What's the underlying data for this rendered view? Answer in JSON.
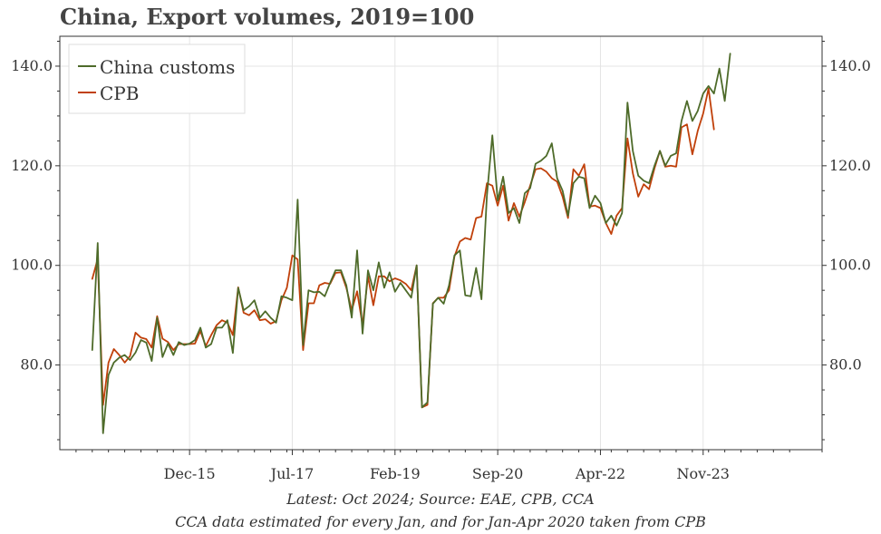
{
  "chart_data": {
    "type": "line",
    "title": "China, Export volumes, 2019=100",
    "footnote_1": "Latest: Oct 2024; Source: EAE, CPB, CCA",
    "footnote_2": "CCA data estimated for every Jan, and for Jan-Apr 2020 taken from CPB",
    "x_tick_labels": [
      "Dec-15",
      "Jul-17",
      "Feb-19",
      "Sep-20",
      "Apr-22",
      "Nov-23"
    ],
    "x_tick_dates": [
      "2015-12",
      "2017-07",
      "2019-02",
      "2020-09",
      "2022-04",
      "2023-11"
    ],
    "x_range": [
      "2013-12",
      "2025-09"
    ],
    "y_range": [
      63,
      146
    ],
    "y_ticks": [
      80.0,
      100.0,
      120.0,
      140.0
    ],
    "y_tick_labels": [
      "80.0",
      "100.0",
      "120.0",
      "140.0"
    ],
    "grid": true,
    "legend_position": "top-left",
    "colors": {
      "china_customs": "#4e6b2a",
      "cpb": "#c0400a",
      "grid": "#e4e4e4",
      "axis": "#333333"
    },
    "series": [
      {
        "name": "China customs",
        "start": "2014-06",
        "values": [
          83.0,
          104.5,
          66.3,
          78.0,
          80.5,
          81.5,
          82.0,
          81.0,
          82.5,
          85.0,
          84.5,
          80.8,
          89.5,
          81.6,
          84.3,
          82.0,
          84.6,
          84.0,
          84.3,
          85.0,
          87.5,
          83.5,
          84.2,
          87.5,
          87.5,
          89.0,
          82.4,
          95.5,
          91.0,
          91.8,
          93.0,
          89.5,
          90.8,
          89.5,
          88.5,
          93.8,
          93.5,
          93.0,
          113.2,
          84.0,
          95.0,
          94.6,
          94.7,
          93.8,
          96.5,
          99.0,
          99.0,
          96.0,
          89.5,
          103.0,
          86.3,
          99.0,
          95.0,
          100.6,
          95.5,
          98.6,
          94.7,
          96.5,
          95.0,
          93.5,
          100.0,
          71.5,
          72.5,
          92.3,
          93.5,
          92.3,
          96.0,
          102.0,
          103.0,
          94.0,
          93.8,
          99.5,
          93.2,
          114.0,
          126.1,
          113.0,
          117.8,
          110.5,
          111.5,
          108.5,
          114.5,
          115.5,
          120.4,
          121.0,
          122.0,
          124.5,
          117.5,
          115.0,
          110.0,
          116.5,
          117.8,
          117.5,
          111.5,
          114.0,
          112.5,
          108.5,
          110.0,
          108.0,
          110.5,
          132.7,
          123.0,
          118.0,
          117.0,
          116.5,
          120.0,
          123.0,
          120.0,
          122.0,
          122.5,
          129.0,
          133.0,
          129.0,
          131.0,
          134.5,
          136.0,
          134.5,
          139.5,
          133.0,
          142.5
        ]
      },
      {
        "name": "CPB",
        "start": "2014-06",
        "values": [
          97.3,
          101.3,
          72.0,
          80.5,
          83.2,
          82.0,
          80.5,
          81.8,
          86.5,
          85.5,
          85.2,
          83.5,
          89.8,
          85.3,
          84.6,
          83.0,
          84.2,
          84.2,
          84.2,
          84.3,
          86.8,
          83.8,
          86.0,
          88.0,
          89.0,
          88.5,
          86.0,
          95.6,
          90.5,
          90.0,
          91.0,
          89.0,
          89.2,
          88.3,
          88.8,
          93.0,
          95.5,
          102.0,
          101.2,
          83.0,
          92.4,
          92.4,
          96.0,
          96.5,
          96.3,
          98.5,
          98.6,
          95.5,
          91.0,
          94.8,
          88.0,
          97.8,
          92.0,
          97.8,
          97.8,
          96.8,
          97.4,
          97.0,
          96.3,
          95.0,
          100.0,
          71.5,
          72.0,
          92.4,
          93.5,
          93.5,
          95.0,
          101.8,
          104.8,
          105.5,
          105.2,
          109.5,
          109.8,
          116.5,
          116.0,
          112.0,
          116.0,
          109.0,
          112.5,
          109.8,
          112.7,
          116.0,
          119.3,
          119.5,
          118.8,
          117.5,
          116.8,
          113.8,
          109.5,
          119.3,
          118.0,
          120.3,
          111.8,
          112.0,
          111.5,
          108.5,
          106.3,
          110.0,
          111.5,
          125.5,
          118.5,
          113.8,
          116.3,
          115.3,
          119.5,
          123.0,
          119.8,
          120.0,
          119.8,
          127.7,
          128.3,
          122.3,
          127.0,
          130.5,
          135.5,
          127.3
        ]
      }
    ]
  }
}
